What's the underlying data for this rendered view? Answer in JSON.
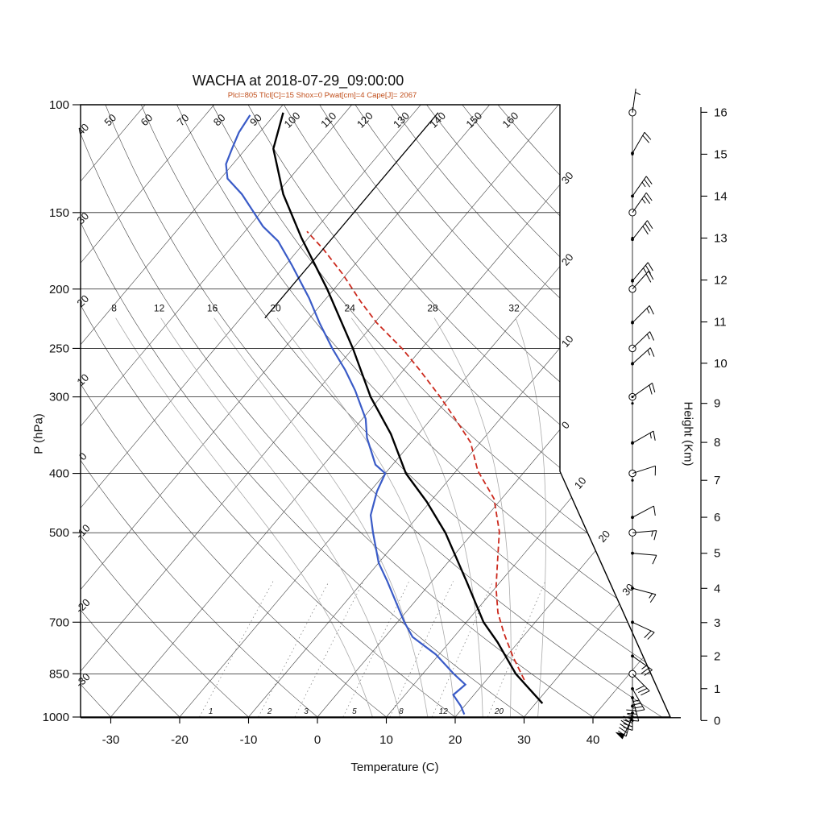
{
  "page": {
    "title": "WACHA at 2018-07-29_09:00:00",
    "info_line": "Plcl=805 Tlcl[C]=15 Shox=0 Pwat[cm]=4 Cape[J]= 2067"
  },
  "axes": {
    "pressure": {
      "label": "P (hPa)",
      "ticks": [
        100,
        150,
        200,
        250,
        300,
        400,
        500,
        700,
        850,
        1000
      ]
    },
    "temperature": {
      "label": "Temperature (C)",
      "ticks": [
        -30,
        -20,
        -10,
        0,
        10,
        20,
        30,
        40
      ]
    },
    "height": {
      "label": "Height (Km)",
      "ticks": [
        0,
        1,
        2,
        3,
        4,
        5,
        6,
        7,
        8,
        9,
        10,
        11,
        12,
        13,
        14,
        15,
        16
      ]
    }
  },
  "background": {
    "isotherms": {
      "start": -110,
      "end": 40,
      "step": 10,
      "right_edge_labels": [
        "30",
        "20",
        "10",
        "0"
      ],
      "right_edge_label_temps": [
        -30,
        -20,
        -10,
        0
      ],
      "diagonal_labels": [
        "10",
        "20",
        "30"
      ],
      "diagonal_label_temps": [
        10,
        20,
        30
      ]
    },
    "dry_adiabats": {
      "start": -30,
      "end": 160,
      "step": 10,
      "top_labels": [
        50,
        60,
        70,
        80,
        90,
        100,
        110,
        120,
        130,
        140,
        150,
        160
      ],
      "left_labels": [
        40,
        30,
        20,
        10,
        0,
        -10,
        -20,
        -30
      ]
    },
    "moist_adiabats": {
      "values": [
        8,
        12,
        16,
        20,
        24,
        28,
        32
      ]
    },
    "mixing_ratio": {
      "values": [
        1,
        2,
        3,
        5,
        8,
        12,
        20
      ]
    }
  },
  "chart_data": {
    "type": "line",
    "title": "WACHA at 2018-07-29_09:00:00",
    "xlabel": "Temperature (C)",
    "ylabel": "P (hPa)",
    "x_range": [
      -35,
      45
    ],
    "y_range_hpa": [
      1000,
      100
    ],
    "grid": "skew-t log-p",
    "series": [
      {
        "name": "temperature",
        "color": "#000000",
        "style": "solid",
        "width": 2.4,
        "points": [
          [
            950,
            31
          ],
          [
            850,
            23.5
          ],
          [
            755,
            17
          ],
          [
            700,
            12.5
          ],
          [
            600,
            5
          ],
          [
            500,
            -4
          ],
          [
            445,
            -10.5
          ],
          [
            400,
            -17
          ],
          [
            345,
            -24
          ],
          [
            300,
            -31.5
          ],
          [
            250,
            -40
          ],
          [
            200,
            -51
          ],
          [
            165,
            -61
          ],
          [
            140,
            -69
          ],
          [
            118,
            -76
          ],
          [
            103,
            -79
          ]
        ]
      },
      {
        "name": "dewpoint",
        "color": "#3a5bc7",
        "style": "solid",
        "width": 2.2,
        "points": [
          [
            990,
            21
          ],
          [
            960,
            19.5
          ],
          [
            920,
            17
          ],
          [
            885,
            17.5
          ],
          [
            850,
            14.5
          ],
          [
            790,
            9.5
          ],
          [
            740,
            4
          ],
          [
            700,
            1
          ],
          [
            600,
            -6.5
          ],
          [
            560,
            -10
          ],
          [
            500,
            -14.5
          ],
          [
            468,
            -17
          ],
          [
            428,
            -19
          ],
          [
            400,
            -20
          ],
          [
            387,
            -22.5
          ],
          [
            350,
            -27
          ],
          [
            326,
            -29.5
          ],
          [
            293,
            -34.5
          ],
          [
            271,
            -38.5
          ],
          [
            250,
            -43
          ],
          [
            227,
            -48
          ],
          [
            207,
            -52.5
          ],
          [
            183,
            -59
          ],
          [
            167,
            -64
          ],
          [
            158,
            -68
          ],
          [
            140,
            -75
          ],
          [
            132,
            -79
          ],
          [
            125,
            -81
          ],
          [
            118,
            -82
          ],
          [
            111,
            -83
          ],
          [
            104,
            -83.5
          ]
        ]
      },
      {
        "name": "parcel",
        "color": "#cc2a1e",
        "style": "dashed",
        "width": 1.8,
        "points": [
          [
            870,
            25.5
          ],
          [
            797,
            21
          ],
          [
            728,
            16.7
          ],
          [
            675,
            13.4
          ],
          [
            615,
            10.1
          ],
          [
            561,
            7.3
          ],
          [
            498,
            3.7
          ],
          [
            440,
            -1.1
          ],
          [
            396,
            -6.9
          ],
          [
            356,
            -11.4
          ],
          [
            326,
            -16.5
          ],
          [
            299,
            -21.6
          ],
          [
            271,
            -27.7
          ],
          [
            251,
            -32.6
          ],
          [
            227,
            -39.7
          ],
          [
            210,
            -44.5
          ],
          [
            189,
            -50.6
          ],
          [
            172,
            -56.5
          ],
          [
            161,
            -61
          ]
        ]
      },
      {
        "name": "stratosphere-isotherm",
        "color": "#000000",
        "style": "solid",
        "width": 1.3,
        "points": [
          [
            223,
            -56.5
          ],
          [
            103,
            -56.5
          ]
        ]
      }
    ]
  },
  "wind": {
    "levels": [
      {
        "p": 103,
        "dir": 8,
        "speed": 5,
        "marker": "circle"
      },
      {
        "p": 120,
        "dir": 30,
        "speed": 20,
        "marker": "dot"
      },
      {
        "p": 141,
        "dir": 35,
        "speed": 25,
        "marker": "dot"
      },
      {
        "p": 150,
        "dir": 35,
        "speed": 25,
        "marker": "circle"
      },
      {
        "p": 166,
        "dir": 38,
        "speed": 30,
        "marker": "dot"
      },
      {
        "p": 194,
        "dir": 40,
        "speed": 25,
        "marker": "dot"
      },
      {
        "p": 200,
        "dir": 42,
        "speed": 20,
        "marker": "circle"
      },
      {
        "p": 227,
        "dir": 45,
        "speed": 15,
        "marker": "dot"
      },
      {
        "p": 250,
        "dir": 46,
        "speed": 15,
        "marker": "circle"
      },
      {
        "p": 265,
        "dir": 48,
        "speed": 15,
        "marker": "dot"
      },
      {
        "p": 300,
        "dir": 55,
        "speed": 20,
        "marker": "circle-dot"
      },
      {
        "p": 357,
        "dir": 60,
        "speed": 15,
        "marker": "dot"
      },
      {
        "p": 400,
        "dir": 72,
        "speed": 10,
        "marker": "circle"
      },
      {
        "p": 472,
        "dir": 62,
        "speed": 10,
        "marker": "dot"
      },
      {
        "p": 500,
        "dir": 85,
        "speed": 15,
        "marker": "circle"
      },
      {
        "p": 540,
        "dir": 95,
        "speed": 10,
        "marker": "dot"
      },
      {
        "p": 616,
        "dir": 105,
        "speed": 15,
        "marker": "dot"
      },
      {
        "p": 700,
        "dir": 115,
        "speed": 20,
        "marker": "dot"
      },
      {
        "p": 795,
        "dir": 125,
        "speed": 25,
        "marker": "dot"
      },
      {
        "p": 850,
        "dir": 135,
        "speed": 30,
        "marker": "circle"
      },
      {
        "p": 899,
        "dir": 150,
        "speed": 35,
        "marker": "dot"
      },
      {
        "p": 930,
        "dir": 165,
        "speed": 40,
        "marker": "dot"
      },
      {
        "p": 960,
        "dir": 180,
        "speed": 45,
        "marker": "dot"
      },
      {
        "p": 985,
        "dir": 195,
        "speed": 48,
        "marker": "dot"
      },
      {
        "p": 1000,
        "dir": 205,
        "speed": 50,
        "marker": "dot"
      }
    ]
  },
  "colors": {
    "info_line": "#c14f1c",
    "grid_dark": "#333333",
    "grid_light": "#aaaaaa",
    "mixing": "#777777",
    "axis": "#000000"
  }
}
